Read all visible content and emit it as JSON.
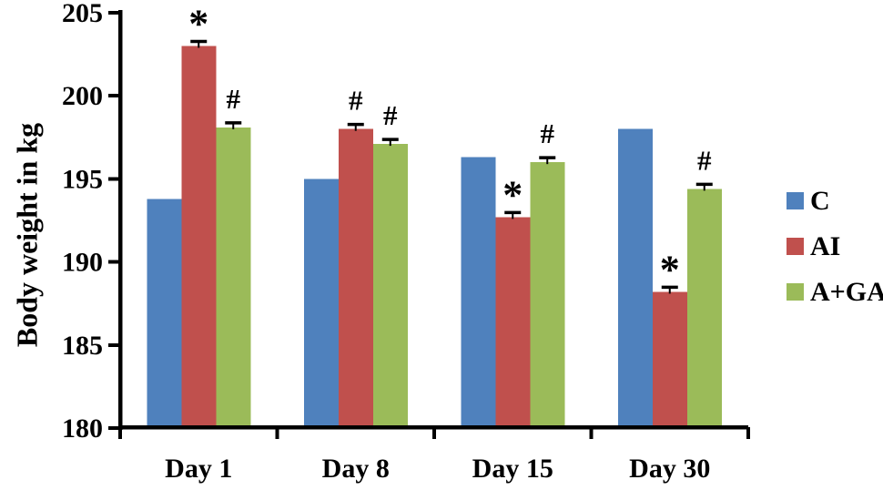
{
  "chart_data": {
    "type": "bar",
    "title": "",
    "xlabel": "",
    "ylabel": "Body weight in kg",
    "categories": [
      "Day 1",
      "Day 8",
      "Day 15",
      "Day 30"
    ],
    "series": [
      {
        "name": "C",
        "color": "#4F81BD",
        "values": [
          193.8,
          195.0,
          196.3,
          198.0
        ],
        "errors": [
          0,
          0,
          0,
          0
        ],
        "annotations": [
          "",
          "",
          "",
          ""
        ]
      },
      {
        "name": "AI",
        "color": "#C0504D",
        "values": [
          203.0,
          198.0,
          192.7,
          188.2
        ],
        "errors": [
          0.15,
          0.15,
          0.15,
          0.15
        ],
        "annotations": [
          "*",
          "#",
          "*",
          "*"
        ]
      },
      {
        "name": "A+GA",
        "color": "#9BBB59",
        "values": [
          198.1,
          197.1,
          196.0,
          194.4
        ],
        "errors": [
          0.15,
          0.15,
          0.15,
          0.15
        ],
        "annotations": [
          "#",
          "#",
          "#",
          "#"
        ]
      }
    ],
    "ylim": [
      180,
      205
    ],
    "yticks": [
      180,
      185,
      190,
      195,
      200,
      205
    ],
    "grid": false,
    "legend_position": "right",
    "axis_color": "#000000",
    "annotation_color": "#000000",
    "error_bar_color": "#000000"
  }
}
